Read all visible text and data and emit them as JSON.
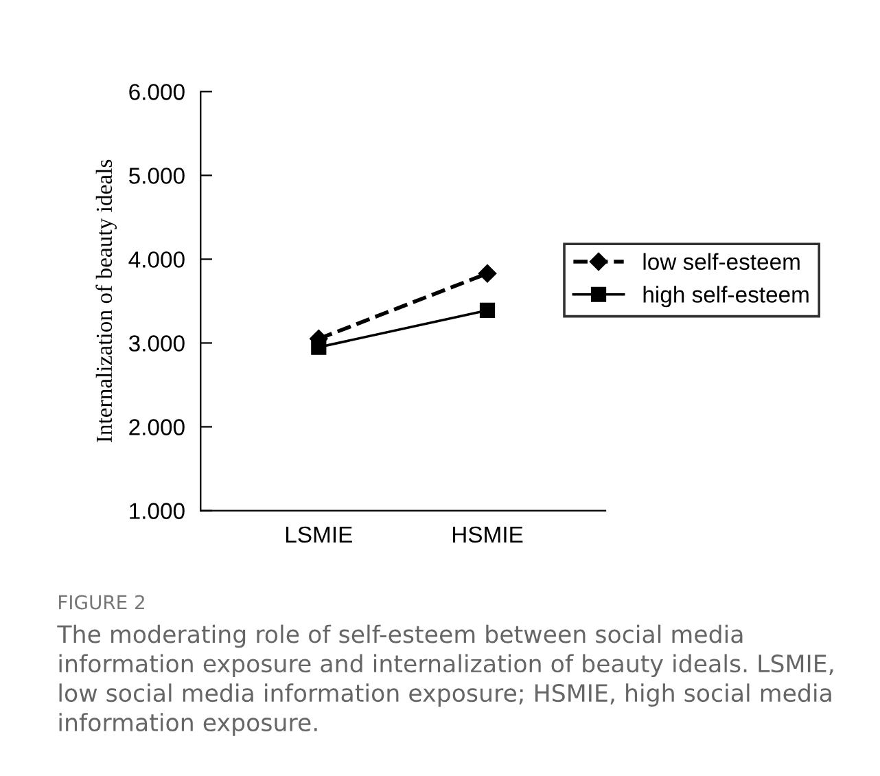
{
  "chart_data": {
    "type": "line",
    "ylabel": "Internalization of beauty ideals",
    "categories": [
      "LSMIE",
      "HSMIE"
    ],
    "series": [
      {
        "name": "low self-esteem",
        "color": "#000000",
        "values": [
          3.05,
          3.83
        ],
        "marker": "diamond",
        "line_style": "dashed"
      },
      {
        "name": "high self-esteem",
        "color": "#000000",
        "values": [
          2.95,
          3.39
        ],
        "marker": "square",
        "line_style": "solid"
      }
    ],
    "ylim": [
      1,
      6
    ],
    "yticks": [
      {
        "value": 1,
        "label": "1.000"
      },
      {
        "value": 2,
        "label": "2.000"
      },
      {
        "value": 3,
        "label": "3.000"
      },
      {
        "value": 4,
        "label": "4.000"
      },
      {
        "value": 5,
        "label": "5.000"
      },
      {
        "value": 6,
        "label": "6.000"
      }
    ],
    "grid": false,
    "legend": "right",
    "annotations": [
      "FIGURE 2",
      "The moderating role of self-esteem between social media information exposure and internalization of beauty ideals. LSMIE, low social media information exposure; HSMIE, high social media information exposure."
    ]
  }
}
